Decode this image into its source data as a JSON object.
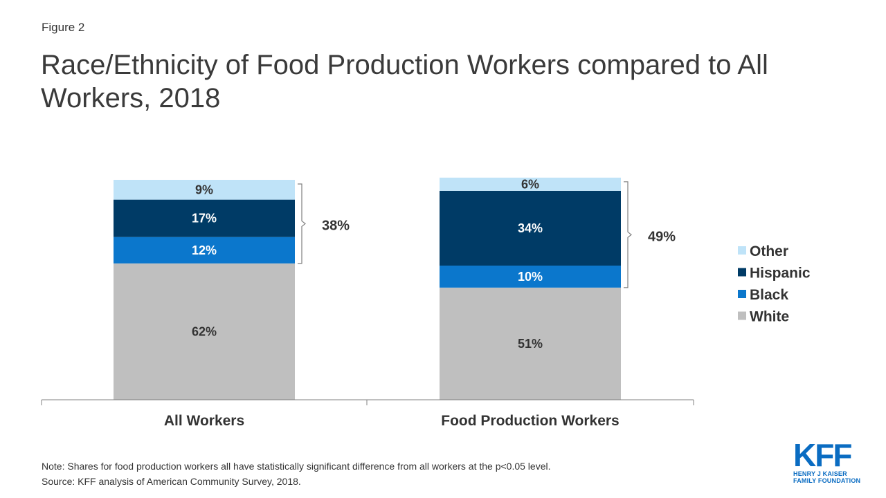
{
  "figure_label": "Figure 2",
  "title": "Race/Ethnicity of Food Production Workers compared to All Workers, 2018",
  "chart_data": {
    "type": "bar",
    "stacked": true,
    "categories": [
      "All Workers",
      "Food Production Workers"
    ],
    "series": [
      {
        "name": "White",
        "values": [
          62,
          51
        ],
        "labels": [
          "62%",
          "51%"
        ],
        "color": "#bfbfbf",
        "label_color": "#333333"
      },
      {
        "name": "Black",
        "values": [
          12,
          10
        ],
        "labels": [
          "12%",
          "10%"
        ],
        "color": "#0b77cc",
        "label_color": "#ffffff"
      },
      {
        "name": "Hispanic",
        "values": [
          17,
          34
        ],
        "labels": [
          "17%",
          "34%"
        ],
        "color": "#003b66",
        "label_color": "#ffffff"
      },
      {
        "name": "Other",
        "values": [
          9,
          6
        ],
        "labels": [
          "9%",
          "6%"
        ],
        "color": "#bfe3f8",
        "label_color": "#333333"
      }
    ],
    "brackets": [
      {
        "category": "All Workers",
        "label": "38%",
        "value": 38
      },
      {
        "category": "Food Production Workers",
        "label": "49%",
        "value": 49
      }
    ],
    "legend": {
      "position": "right",
      "order": [
        "Other",
        "Hispanic",
        "Black",
        "White"
      ]
    },
    "ylim": [
      0,
      100
    ],
    "grid": false
  },
  "note": "Note: Shares for food production workers all have statistically significant difference from all workers at the p<0.05 level.",
  "source": "Source: KFF analysis of American Community Survey, 2018.",
  "logo": {
    "mark": "KFF",
    "line1": "HENRY J KAISER",
    "line2": "FAMILY FOUNDATION"
  }
}
